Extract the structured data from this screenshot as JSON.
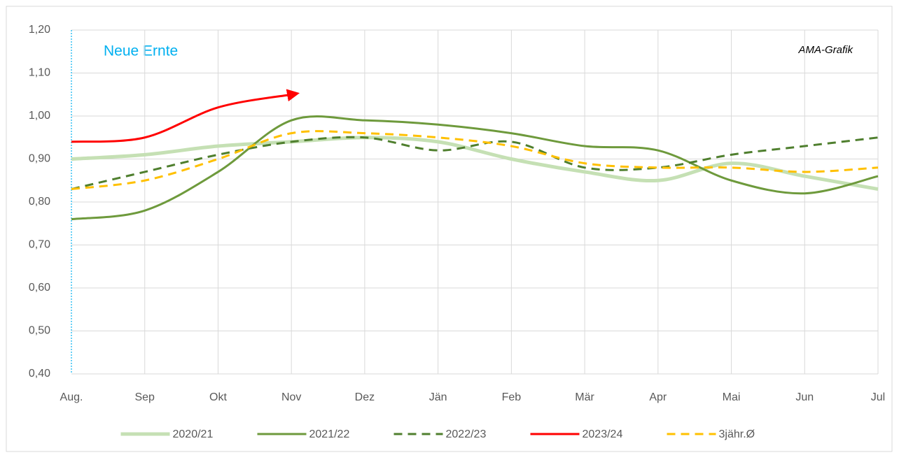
{
  "chart_data": {
    "type": "line",
    "annotation": "Neue Ernte",
    "source": "AMA-Grafik",
    "categories": [
      "Aug.",
      "Sep",
      "Okt",
      "Nov",
      "Dez",
      "Jän",
      "Feb",
      "Mär",
      "Apr",
      "Mai",
      "Jun",
      "Jul"
    ],
    "series": [
      {
        "name": "2020/21",
        "color": "#c5e0b4",
        "dashed": false,
        "values": [
          0.9,
          0.91,
          0.93,
          0.94,
          0.95,
          0.94,
          0.9,
          0.87,
          0.85,
          0.89,
          0.86,
          0.83
        ]
      },
      {
        "name": "2021/22",
        "color": "#6e9a3c",
        "dashed": false,
        "values": [
          0.76,
          0.78,
          0.87,
          0.99,
          0.99,
          0.98,
          0.96,
          0.93,
          0.92,
          0.85,
          0.82,
          0.86
        ]
      },
      {
        "name": "2022/23",
        "color": "#4f7f2e",
        "dashed": true,
        "values": [
          0.83,
          0.87,
          0.91,
          0.94,
          0.95,
          0.92,
          0.94,
          0.88,
          0.88,
          0.91,
          0.93,
          0.95
        ]
      },
      {
        "name": "2023/24",
        "color": "#ff0000",
        "dashed": false,
        "values": [
          0.94,
          0.95,
          1.02,
          1.05,
          null,
          null,
          null,
          null,
          null,
          null,
          null,
          null
        ]
      },
      {
        "name": "3jähr.Ø",
        "color": "#ffc000",
        "dashed": true,
        "values": [
          0.83,
          0.85,
          0.9,
          0.96,
          0.96,
          0.95,
          0.93,
          0.89,
          0.88,
          0.88,
          0.87,
          0.88
        ]
      }
    ],
    "ylim": [
      0.4,
      1.2
    ],
    "yticks": [
      {
        "value": 0.4,
        "label": "0,40"
      },
      {
        "value": 0.5,
        "label": "0,50"
      },
      {
        "value": 0.6,
        "label": "0,60"
      },
      {
        "value": 0.7,
        "label": "0,70"
      },
      {
        "value": 0.8,
        "label": "0,80"
      },
      {
        "value": 0.9,
        "label": "0,90"
      },
      {
        "value": 1.0,
        "label": "1,00"
      },
      {
        "value": 1.1,
        "label": "1,10"
      },
      {
        "value": 1.2,
        "label": "1,20"
      }
    ],
    "grid": true,
    "legend": "bottom"
  }
}
